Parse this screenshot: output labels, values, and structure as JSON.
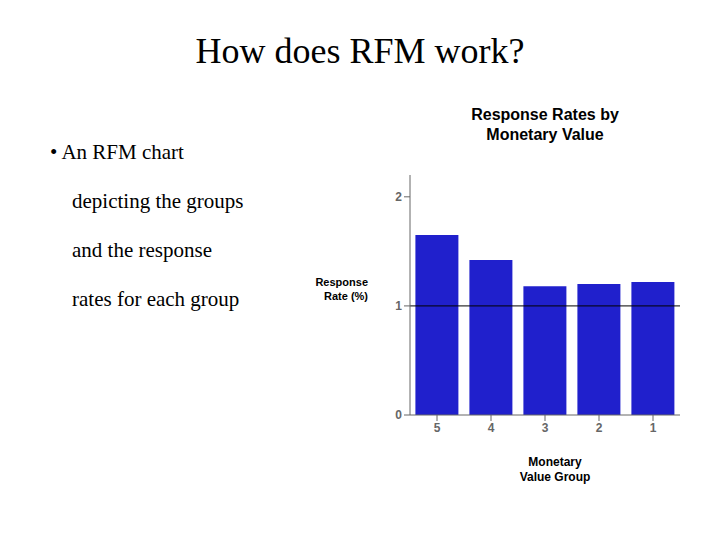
{
  "chart_data": {
    "type": "bar",
    "title": "How does RFM work?",
    "subtitle": "Response Rates by\nMonetary Value",
    "annotations": [
      "• An RFM chart",
      "depicting the groups",
      "and the response",
      "rates for each group"
    ],
    "xlabel": "Monetary\nValue Group",
    "ylabel": "Response\nRate (%)",
    "categories": [
      "5",
      "4",
      "3",
      "2",
      "1"
    ],
    "values": [
      1.65,
      1.42,
      1.18,
      1.2,
      1.22
    ],
    "color": "#2020CC",
    "ylim": [
      0,
      2.2
    ],
    "yticks": [
      0,
      1,
      2
    ],
    "hline": 1,
    "grid": false
  }
}
